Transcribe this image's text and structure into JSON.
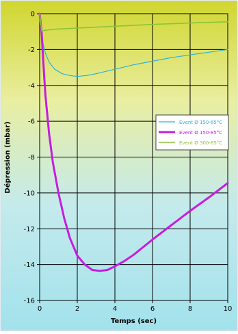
{
  "chart_data": {
    "type": "line",
    "xlabel": "Temps (sec)",
    "ylabel": "Dépression (mbar)",
    "xlim": [
      0,
      10
    ],
    "ylim": [
      -16,
      0
    ],
    "x_ticks": [
      0,
      2,
      4,
      6,
      8,
      10
    ],
    "y_ticks": [
      0,
      -2,
      -4,
      -6,
      -8,
      -10,
      -12,
      -14,
      -16
    ],
    "grid": true,
    "legend_position": "right",
    "background_gradient": [
      "#d0d62e",
      "#e9eea0",
      "#c4eaec",
      "#a2e2ec"
    ],
    "series": [
      {
        "name": "Event Ø 150-65°C",
        "color": "#2fb0dc",
        "x": [
          0,
          0.1,
          0.3,
          0.5,
          0.8,
          1.2,
          1.6,
          2.0,
          2.5,
          3.0,
          4.0,
          5.0,
          6.0,
          7.0,
          8.0,
          9.0,
          10.0
        ],
        "y": [
          0,
          -1.3,
          -2.2,
          -2.7,
          -3.1,
          -3.35,
          -3.45,
          -3.5,
          -3.45,
          -3.35,
          -3.1,
          -2.85,
          -2.65,
          -2.45,
          -2.3,
          -2.15,
          -2.0
        ]
      },
      {
        "name": "Event Ø 150-85°C",
        "color": "#c41ee0",
        "x": [
          0,
          0.1,
          0.2,
          0.3,
          0.5,
          0.7,
          1.0,
          1.3,
          1.6,
          2.0,
          2.4,
          2.8,
          3.2,
          3.6,
          4.0,
          4.5,
          5.0,
          6.0,
          7.0,
          8.0,
          9.0,
          10.0
        ],
        "y": [
          0,
          -1.0,
          -2.8,
          -4.5,
          -6.7,
          -8.3,
          -10.0,
          -11.4,
          -12.5,
          -13.5,
          -14.0,
          -14.3,
          -14.35,
          -14.3,
          -14.1,
          -13.8,
          -13.45,
          -12.6,
          -11.8,
          -11.0,
          -10.25,
          -9.45
        ]
      },
      {
        "name": "Event Ø 300-85°C",
        "color": "#8ec23a",
        "x": [
          0,
          0.1,
          0.5,
          1.0,
          2.0,
          4.0,
          6.0,
          8.0,
          10.0
        ],
        "y": [
          0,
          -0.95,
          -0.9,
          -0.85,
          -0.8,
          -0.7,
          -0.6,
          -0.52,
          -0.45
        ]
      }
    ]
  }
}
